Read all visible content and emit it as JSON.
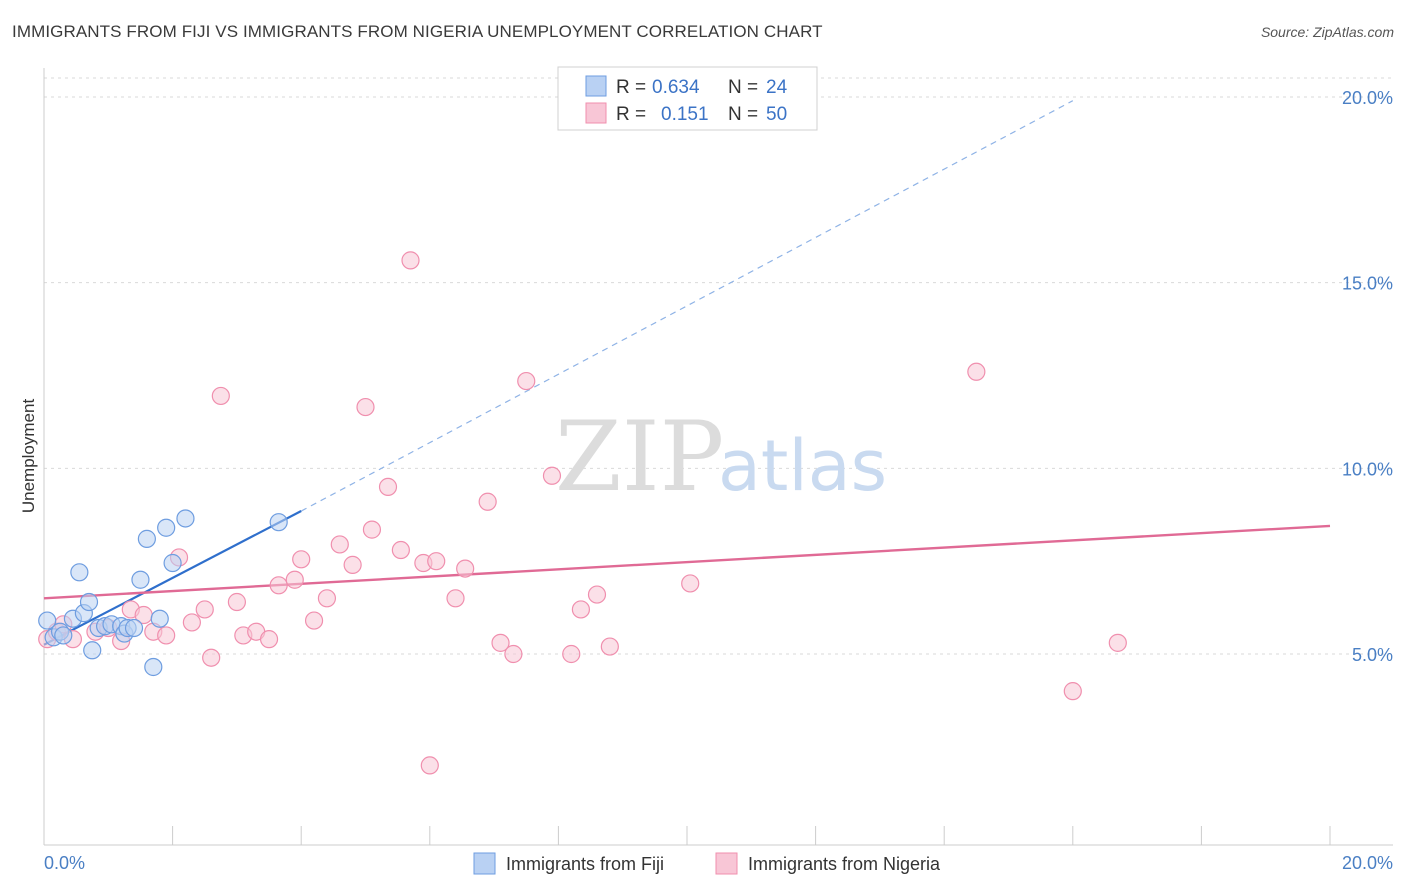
{
  "title": "IMMIGRANTS FROM FIJI VS IMMIGRANTS FROM NIGERIA UNEMPLOYMENT CORRELATION CHART",
  "source": "Source: ZipAtlas.com",
  "watermark": {
    "zip": "ZIP",
    "atlas": "atlas"
  },
  "chart_data": {
    "type": "scatter",
    "title": "IMMIGRANTS FROM FIJI VS IMMIGRANTS FROM NIGERIA UNEMPLOYMENT CORRELATION CHART",
    "xlabel": "",
    "ylabel": "Unemployment",
    "xlim": [
      0,
      20
    ],
    "ylim": [
      0,
      20.5
    ],
    "x_tick_labels": [
      "0.0%",
      "20.0%"
    ],
    "y_ticks": [
      5,
      10,
      15,
      20
    ],
    "y_tick_labels": [
      "5.0%",
      "10.0%",
      "15.0%",
      "20.0%"
    ],
    "legend": {
      "position": "top-center",
      "entries": [
        {
          "r_label": "R =",
          "r_value": "0.634",
          "n_label": "N =",
          "n_value": "24"
        },
        {
          "r_label": "R =",
          "r_value": "0.151",
          "n_label": "N =",
          "n_value": "50"
        }
      ]
    },
    "series": [
      {
        "name": "Immigrants from Fiji",
        "color": "#6e9de0",
        "fill": "#b9d1f3",
        "trend_color": "#2f6fcc",
        "trend": {
          "x0": 0.0,
          "y0": 5.25,
          "x1": 4.0,
          "y1": 8.85,
          "dash_to_x": 16.0,
          "dash_to_y": 19.9
        },
        "points": [
          {
            "x": 0.05,
            "y": 5.9
          },
          {
            "x": 0.15,
            "y": 5.45
          },
          {
            "x": 0.25,
            "y": 5.6
          },
          {
            "x": 0.45,
            "y": 5.95
          },
          {
            "x": 0.55,
            "y": 7.2
          },
          {
            "x": 0.62,
            "y": 6.1
          },
          {
            "x": 0.7,
            "y": 6.4
          },
          {
            "x": 0.75,
            "y": 5.1
          },
          {
            "x": 0.85,
            "y": 5.7
          },
          {
            "x": 0.95,
            "y": 5.75
          },
          {
            "x": 1.05,
            "y": 5.8
          },
          {
            "x": 1.2,
            "y": 5.75
          },
          {
            "x": 1.25,
            "y": 5.55
          },
          {
            "x": 1.3,
            "y": 5.7
          },
          {
            "x": 1.4,
            "y": 5.7
          },
          {
            "x": 1.5,
            "y": 7.0
          },
          {
            "x": 1.6,
            "y": 8.1
          },
          {
            "x": 1.7,
            "y": 4.65
          },
          {
            "x": 1.8,
            "y": 5.95
          },
          {
            "x": 1.9,
            "y": 8.4
          },
          {
            "x": 2.0,
            "y": 7.45
          },
          {
            "x": 2.2,
            "y": 8.65
          },
          {
            "x": 3.65,
            "y": 8.55
          },
          {
            "x": 0.3,
            "y": 5.5
          }
        ]
      },
      {
        "name": "Immigrants from Nigeria",
        "color": "#f08fae",
        "fill": "#f8c6d6",
        "trend_color": "#e06a95",
        "trend": {
          "x0": 0.0,
          "y0": 6.5,
          "x1": 20.0,
          "y1": 8.45
        },
        "points": [
          {
            "x": 0.05,
            "y": 5.4
          },
          {
            "x": 0.2,
            "y": 5.6
          },
          {
            "x": 0.3,
            "y": 5.8
          },
          {
            "x": 0.45,
            "y": 5.4
          },
          {
            "x": 0.8,
            "y": 5.6
          },
          {
            "x": 1.0,
            "y": 5.7
          },
          {
            "x": 1.2,
            "y": 5.35
          },
          {
            "x": 1.35,
            "y": 6.2
          },
          {
            "x": 1.55,
            "y": 6.05
          },
          {
            "x": 1.7,
            "y": 5.6
          },
          {
            "x": 1.9,
            "y": 5.5
          },
          {
            "x": 2.1,
            "y": 7.6
          },
          {
            "x": 2.3,
            "y": 5.85
          },
          {
            "x": 2.5,
            "y": 6.2
          },
          {
            "x": 2.6,
            "y": 4.9
          },
          {
            "x": 2.75,
            "y": 11.95
          },
          {
            "x": 3.0,
            "y": 6.4
          },
          {
            "x": 3.1,
            "y": 5.5
          },
          {
            "x": 3.3,
            "y": 5.6
          },
          {
            "x": 3.5,
            "y": 5.4
          },
          {
            "x": 3.65,
            "y": 6.85
          },
          {
            "x": 3.9,
            "y": 7.0
          },
          {
            "x": 4.0,
            "y": 7.55
          },
          {
            "x": 4.2,
            "y": 5.9
          },
          {
            "x": 4.4,
            "y": 6.5
          },
          {
            "x": 4.6,
            "y": 7.95
          },
          {
            "x": 4.8,
            "y": 7.4
          },
          {
            "x": 5.0,
            "y": 11.65
          },
          {
            "x": 5.1,
            "y": 8.35
          },
          {
            "x": 5.35,
            "y": 9.5
          },
          {
            "x": 5.55,
            "y": 7.8
          },
          {
            "x": 5.7,
            "y": 15.6
          },
          {
            "x": 5.9,
            "y": 7.45
          },
          {
            "x": 6.0,
            "y": 2.0
          },
          {
            "x": 6.1,
            "y": 7.5
          },
          {
            "x": 6.4,
            "y": 6.5
          },
          {
            "x": 6.55,
            "y": 7.3
          },
          {
            "x": 6.9,
            "y": 9.1
          },
          {
            "x": 7.1,
            "y": 5.3
          },
          {
            "x": 7.3,
            "y": 5.0
          },
          {
            "x": 7.5,
            "y": 12.35
          },
          {
            "x": 7.9,
            "y": 9.8
          },
          {
            "x": 8.2,
            "y": 5.0
          },
          {
            "x": 8.35,
            "y": 6.2
          },
          {
            "x": 8.6,
            "y": 6.6
          },
          {
            "x": 8.8,
            "y": 5.2
          },
          {
            "x": 10.05,
            "y": 6.9
          },
          {
            "x": 14.5,
            "y": 12.6
          },
          {
            "x": 16.0,
            "y": 4.0
          },
          {
            "x": 16.7,
            "y": 5.3
          }
        ]
      }
    ]
  }
}
